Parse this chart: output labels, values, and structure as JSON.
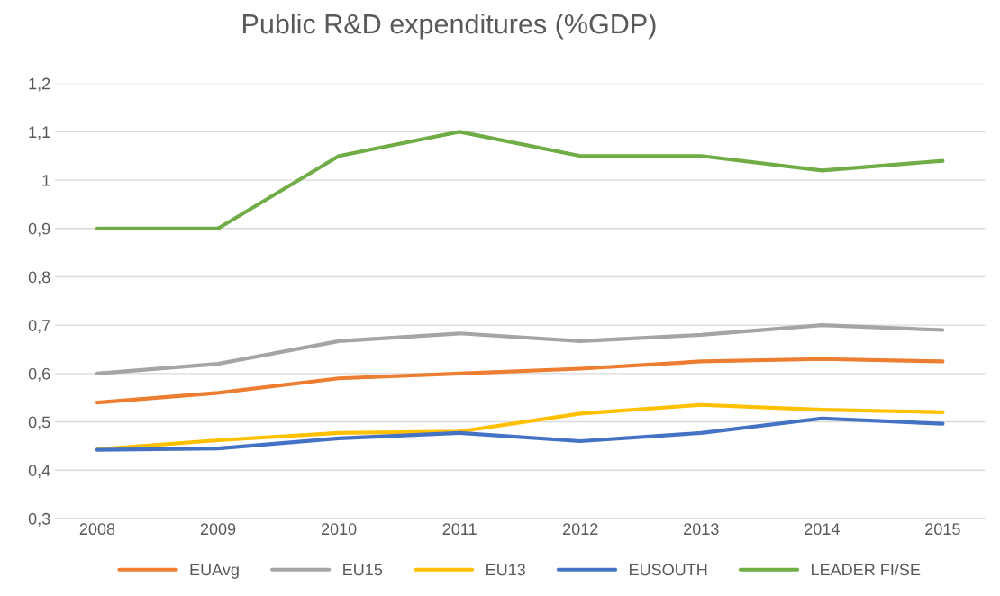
{
  "chart_data": {
    "type": "line",
    "title": "Public R&D expenditures (%GDP)",
    "categories": [
      "2008",
      "2009",
      "2010",
      "2011",
      "2012",
      "2013",
      "2014",
      "2015"
    ],
    "series": [
      {
        "name": "EUAvg",
        "color": "#ed7d31",
        "values": [
          0.54,
          0.56,
          0.59,
          0.6,
          0.61,
          0.625,
          0.63,
          0.625
        ]
      },
      {
        "name": "EU15",
        "color": "#a5a5a5",
        "values": [
          0.6,
          0.62,
          0.667,
          0.683,
          0.667,
          0.68,
          0.7,
          0.69
        ]
      },
      {
        "name": "EU13",
        "color": "#ffc000",
        "values": [
          0.443,
          0.462,
          0.477,
          0.48,
          0.517,
          0.535,
          0.525,
          0.52
        ]
      },
      {
        "name": "EUSOUTH",
        "color": "#4472c4",
        "values": [
          0.442,
          0.445,
          0.466,
          0.477,
          0.46,
          0.477,
          0.507,
          0.496
        ]
      },
      {
        "name": "LEADER FI/SE",
        "color": "#70ad47",
        "values": [
          0.9,
          0.9,
          1.05,
          1.1,
          1.05,
          1.05,
          1.02,
          1.04
        ]
      }
    ],
    "ylim": [
      0.3,
      1.2
    ],
    "yticks": [
      {
        "value": 0.3,
        "label": "0,3"
      },
      {
        "value": 0.4,
        "label": "0,4"
      },
      {
        "value": 0.5,
        "label": "0,5"
      },
      {
        "value": 0.6,
        "label": "0,6"
      },
      {
        "value": 0.7,
        "label": "0,7"
      },
      {
        "value": 0.8,
        "label": "0,8"
      },
      {
        "value": 0.9,
        "label": "0,9"
      },
      1,
      {
        "value": 1.1,
        "label": "1,1"
      },
      {
        "value": 1.2,
        "label": "1,2"
      }
    ],
    "grid": "y",
    "legend": "bottom",
    "marker": "none",
    "line_style": "solid"
  }
}
